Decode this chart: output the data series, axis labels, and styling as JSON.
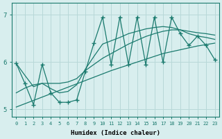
{
  "xlabel": "Humidex (Indice chaleur)",
  "x_values": [
    0,
    1,
    2,
    3,
    4,
    5,
    6,
    7,
    8,
    9,
    10,
    11,
    12,
    13,
    14,
    15,
    16,
    17,
    18,
    19,
    20,
    21,
    22,
    23
  ],
  "y_spiky": [
    5.97,
    5.55,
    5.1,
    5.95,
    5.35,
    5.15,
    5.15,
    5.2,
    5.8,
    6.4,
    6.95,
    5.95,
    6.95,
    5.95,
    6.95,
    5.95,
    6.95,
    6.0,
    6.95,
    6.6,
    6.35,
    6.55,
    6.35,
    6.05
  ],
  "y_line1": [
    5.05,
    5.12,
    5.19,
    5.26,
    5.33,
    5.4,
    5.47,
    5.54,
    5.61,
    5.68,
    5.75,
    5.82,
    5.88,
    5.94,
    6.0,
    6.06,
    6.12,
    6.18,
    6.22,
    6.26,
    6.3,
    6.34,
    6.37,
    6.4
  ],
  "y_line2": [
    5.35,
    5.45,
    5.52,
    5.55,
    5.55,
    5.55,
    5.58,
    5.65,
    5.82,
    5.95,
    6.08,
    6.18,
    6.28,
    6.38,
    6.46,
    6.54,
    6.6,
    6.65,
    6.68,
    6.68,
    6.65,
    6.62,
    6.6,
    6.57
  ],
  "y_line3": [
    5.97,
    5.72,
    5.48,
    5.55,
    5.44,
    5.35,
    5.38,
    5.52,
    5.85,
    6.12,
    6.38,
    6.45,
    6.52,
    6.6,
    6.65,
    6.7,
    6.73,
    6.75,
    6.73,
    6.68,
    6.6,
    6.55,
    6.52,
    6.48
  ],
  "line_color": "#1a7a6e",
  "bg_color": "#d8eeee",
  "grid_color": "#b8d8d8",
  "ylim": [
    4.85,
    7.25
  ],
  "xlim": [
    -0.5,
    23.5
  ],
  "yticks": [
    5,
    6,
    7
  ],
  "xticks": [
    0,
    1,
    2,
    3,
    4,
    5,
    6,
    7,
    8,
    9,
    10,
    11,
    12,
    13,
    14,
    15,
    16,
    17,
    18,
    19,
    20,
    21,
    22,
    23
  ],
  "linewidth": 0.9,
  "marker_size": 2.5
}
